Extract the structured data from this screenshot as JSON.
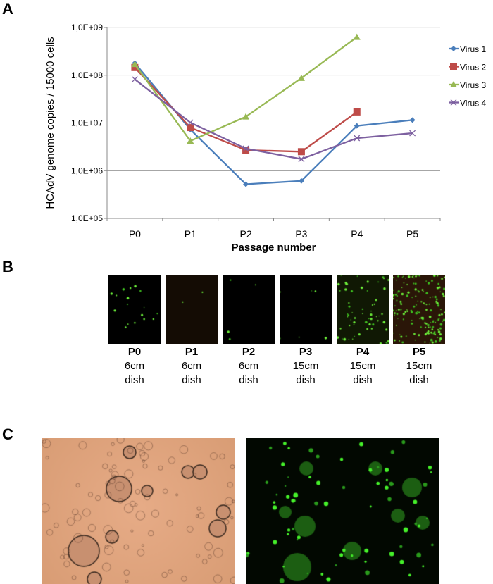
{
  "panels": {
    "a": "A",
    "b": "B",
    "c": "C"
  },
  "chart_data": {
    "type": "line",
    "title": "",
    "xlabel": "Passage number",
    "ylabel": "HCAdV genome copies / 15000 cells",
    "yscale": "log",
    "ylim": [
      100000,
      1000000000
    ],
    "ytick_labels": [
      "1,0E+05",
      "1,0E+06",
      "1,0E+07",
      "1,0E+08",
      "1,0E+09"
    ],
    "ytick_values": [
      100000,
      1000000,
      10000000,
      100000000,
      1000000000
    ],
    "categories": [
      "P0",
      "P1",
      "P2",
      "P3",
      "P4",
      "P5"
    ],
    "grid": "horizontal major",
    "legend": "right",
    "series": [
      {
        "name": "Virus 1",
        "color": "#4a7ebb",
        "marker": "diamond",
        "values": [
          180000000,
          7300000,
          520000,
          610000,
          8700000,
          11500000
        ]
      },
      {
        "name": "Virus 2",
        "color": "#be4b48",
        "marker": "square",
        "values": [
          145000000,
          8000000,
          2700000,
          2500000,
          17000000,
          null
        ]
      },
      {
        "name": "Virus 3",
        "color": "#98b954",
        "marker": "triangle",
        "values": [
          170000000,
          4200000,
          13500000,
          87000000,
          630000000,
          null
        ]
      },
      {
        "name": "Virus 4",
        "color": "#7d60a0",
        "marker": "x",
        "values": [
          82000000,
          10200000,
          2900000,
          1750000,
          4800000,
          6100000
        ]
      }
    ]
  },
  "panel_b": {
    "items": [
      {
        "passage": "P0",
        "size": "6cm",
        "unit": "dish",
        "density": 18,
        "tint": "#000000"
      },
      {
        "passage": "P1",
        "size": "6cm",
        "unit": "dish",
        "density": 2,
        "tint": "#140c04"
      },
      {
        "passage": "P2",
        "size": "6cm",
        "unit": "dish",
        "density": 4,
        "tint": "#000000"
      },
      {
        "passage": "P3",
        "size": "15cm",
        "unit": "dish",
        "density": 6,
        "tint": "#000000"
      },
      {
        "passage": "P4",
        "size": "15cm",
        "unit": "dish",
        "density": 60,
        "tint": "#101804"
      },
      {
        "passage": "P5",
        "size": "15cm",
        "unit": "dish",
        "density": 160,
        "tint": "#2a1608"
      }
    ]
  },
  "colors": {
    "brightfield": "#e0a57e",
    "fluorescence_bg": "#020801",
    "gfp": "#3cf02a"
  }
}
